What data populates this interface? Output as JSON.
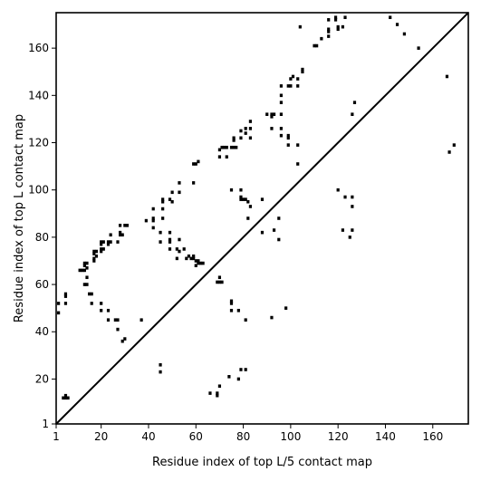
{
  "chart_data": {
    "type": "scatter",
    "title": "",
    "xlabel": "Residue index of top L/5 contact map",
    "ylabel": "Residue index of top L contact map",
    "xlim": [
      1,
      175
    ],
    "ylim": [
      1,
      175
    ],
    "xticks": [
      1,
      20,
      40,
      60,
      80,
      100,
      120,
      140,
      160
    ],
    "yticks": [
      1,
      20,
      40,
      60,
      80,
      100,
      120,
      140,
      160
    ],
    "grid": false,
    "legend": "none",
    "diagonal": true,
    "marker": "square",
    "color": "#000000",
    "upper_points": [
      [
        2,
        48
      ],
      [
        2,
        52
      ],
      [
        5,
        52
      ],
      [
        5,
        55
      ],
      [
        5,
        56
      ],
      [
        4,
        12
      ],
      [
        5,
        12
      ],
      [
        5,
        13
      ],
      [
        6,
        12
      ],
      [
        11,
        66
      ],
      [
        12,
        66
      ],
      [
        13,
        66
      ],
      [
        13,
        68
      ],
      [
        14,
        67
      ],
      [
        14,
        69
      ],
      [
        13,
        69
      ],
      [
        14,
        63
      ],
      [
        13,
        60
      ],
      [
        14,
        60
      ],
      [
        15,
        56
      ],
      [
        16,
        56
      ],
      [
        16,
        52
      ],
      [
        17,
        70
      ],
      [
        17,
        71
      ],
      [
        17,
        73
      ],
      [
        17,
        74
      ],
      [
        18,
        74
      ],
      [
        18,
        72
      ],
      [
        20,
        74
      ],
      [
        20,
        75
      ],
      [
        21,
        75
      ],
      [
        20,
        77
      ],
      [
        21,
        78
      ],
      [
        20,
        78
      ],
      [
        23,
        77
      ],
      [
        24,
        78
      ],
      [
        23,
        78
      ],
      [
        24,
        81
      ],
      [
        27,
        78
      ],
      [
        28,
        81
      ],
      [
        28,
        82
      ],
      [
        29,
        81
      ],
      [
        28,
        85
      ],
      [
        30,
        85
      ],
      [
        31,
        85
      ],
      [
        20,
        49
      ],
      [
        20,
        52
      ],
      [
        23,
        49
      ],
      [
        23,
        45
      ],
      [
        26,
        45
      ],
      [
        27,
        45
      ],
      [
        27,
        41
      ],
      [
        29,
        36
      ],
      [
        30,
        37
      ],
      [
        37,
        45
      ],
      [
        39,
        87
      ],
      [
        42,
        84
      ],
      [
        42,
        87
      ],
      [
        42,
        88
      ],
      [
        42,
        92
      ],
      [
        45,
        82
      ],
      [
        45,
        78
      ],
      [
        45,
        26
      ],
      [
        45,
        23
      ],
      [
        46,
        92
      ],
      [
        46,
        95
      ],
      [
        46,
        96
      ],
      [
        46,
        88
      ],
      [
        49,
        96
      ],
      [
        50,
        95
      ],
      [
        50,
        99
      ],
      [
        49,
        82
      ],
      [
        49,
        79
      ],
      [
        49,
        78
      ],
      [
        49,
        75
      ],
      [
        52,
        75
      ],
      [
        52,
        71
      ],
      [
        53,
        74
      ],
      [
        53,
        79
      ],
      [
        53,
        99
      ],
      [
        53,
        103
      ],
      [
        55,
        75
      ],
      [
        56,
        71
      ],
      [
        57,
        72
      ],
      [
        58,
        71
      ],
      [
        59,
        71
      ],
      [
        59,
        72
      ],
      [
        60,
        68
      ],
      [
        61,
        69
      ],
      [
        62,
        69
      ],
      [
        63,
        69
      ],
      [
        61,
        70
      ],
      [
        60,
        70
      ],
      [
        59,
        103
      ],
      [
        59,
        111
      ],
      [
        60,
        111
      ],
      [
        61,
        112
      ],
      [
        66,
        14
      ],
      [
        69,
        14
      ],
      [
        69,
        13
      ],
      [
        70,
        17
      ],
      [
        69,
        61
      ],
      [
        70,
        61
      ],
      [
        71,
        61
      ],
      [
        70,
        63
      ],
      [
        70,
        114
      ],
      [
        70,
        117
      ],
      [
        71,
        118
      ],
      [
        72,
        118
      ],
      [
        73,
        114
      ],
      [
        73,
        118
      ],
      [
        75,
        118
      ],
      [
        76,
        118
      ],
      [
        76,
        121
      ],
      [
        76,
        122
      ],
      [
        77,
        118
      ],
      [
        74,
        21
      ],
      [
        75,
        52
      ],
      [
        75,
        53
      ],
      [
        75,
        49
      ],
      [
        78,
        49
      ],
      [
        78,
        20
      ],
      [
        79,
        24
      ],
      [
        81,
        24
      ],
      [
        81,
        45
      ],
      [
        75,
        100
      ],
      [
        79,
        97
      ],
      [
        79,
        100
      ],
      [
        79,
        96
      ],
      [
        80,
        96
      ],
      [
        81,
        96
      ],
      [
        82,
        95
      ],
      [
        83,
        93
      ],
      [
        82,
        88
      ],
      [
        79,
        122
      ],
      [
        79,
        125
      ],
      [
        81,
        126
      ],
      [
        81,
        124
      ],
      [
        83,
        122
      ],
      [
        83,
        126
      ],
      [
        83,
        129
      ],
      [
        88,
        82
      ],
      [
        88,
        96
      ],
      [
        90,
        132
      ],
      [
        92,
        131
      ],
      [
        92,
        132
      ],
      [
        93,
        132
      ],
      [
        92,
        126
      ],
      [
        92,
        46
      ],
      [
        93,
        83
      ],
      [
        95,
        79
      ],
      [
        95,
        88
      ],
      [
        96,
        126
      ],
      [
        96,
        123
      ],
      [
        96,
        132
      ],
      [
        96,
        137
      ],
      [
        96,
        140
      ],
      [
        96,
        144
      ],
      [
        98,
        50
      ],
      [
        99,
        122
      ],
      [
        99,
        123
      ],
      [
        99,
        119
      ],
      [
        99,
        144
      ],
      [
        100,
        144
      ],
      [
        100,
        147
      ],
      [
        101,
        148
      ],
      [
        103,
        119
      ],
      [
        103,
        111
      ],
      [
        103,
        144
      ],
      [
        103,
        147
      ],
      [
        104,
        169
      ],
      [
        105,
        150
      ],
      [
        105,
        151
      ],
      [
        110,
        161
      ],
      [
        111,
        161
      ],
      [
        113,
        164
      ],
      [
        116,
        165
      ],
      [
        116,
        167
      ],
      [
        116,
        168
      ],
      [
        116,
        172
      ],
      [
        119,
        172
      ],
      [
        119,
        173
      ],
      [
        120,
        168
      ],
      [
        120,
        169
      ],
      [
        120,
        100
      ],
      [
        122,
        169
      ],
      [
        123,
        173
      ],
      [
        122,
        83
      ],
      [
        123,
        97
      ],
      [
        125,
        80
      ],
      [
        126,
        83
      ],
      [
        126,
        93
      ],
      [
        126,
        97
      ],
      [
        126,
        132
      ],
      [
        127,
        137
      ],
      [
        142,
        173
      ],
      [
        145,
        170
      ],
      [
        148,
        166
      ],
      [
        154,
        160
      ],
      [
        166,
        148
      ],
      [
        167,
        116
      ],
      [
        169,
        119
      ]
    ]
  }
}
